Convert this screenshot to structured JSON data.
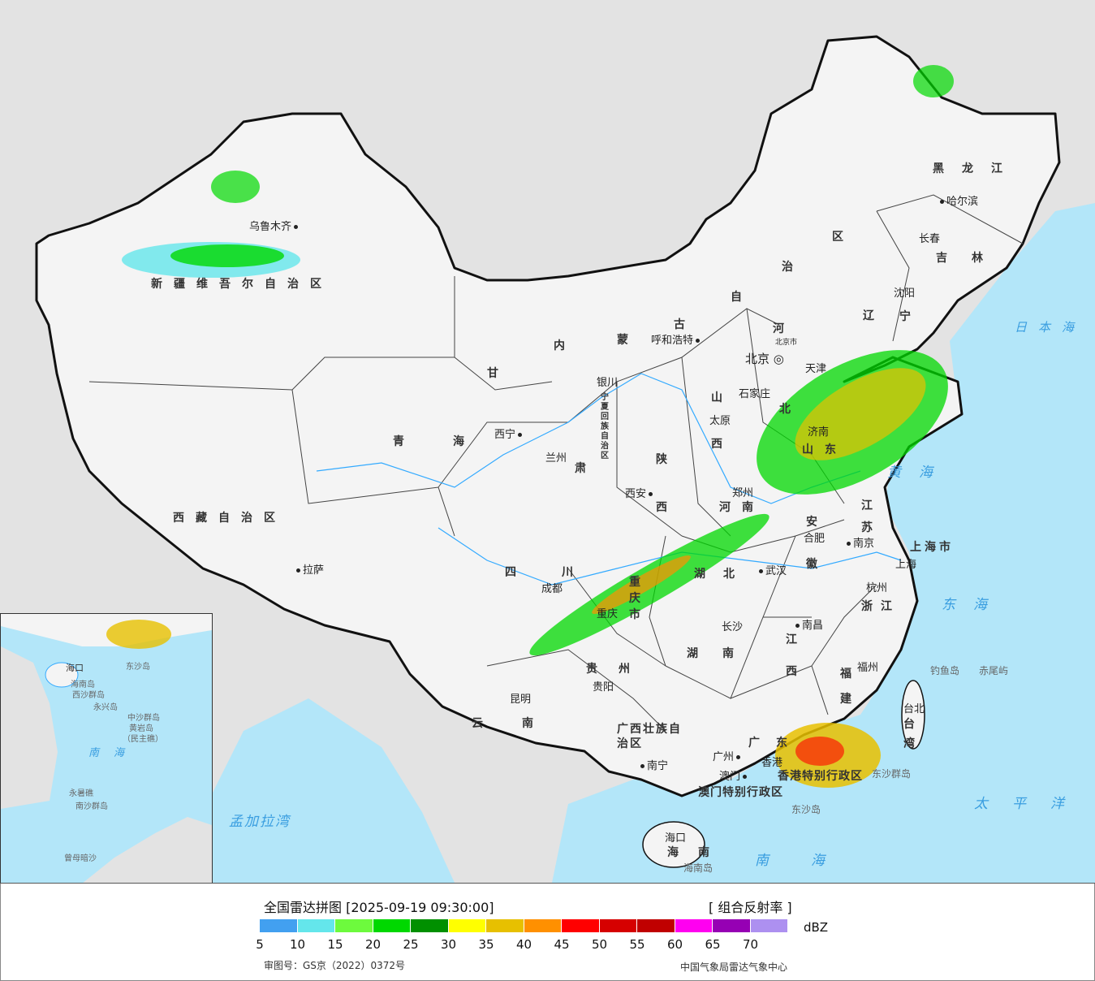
{
  "map": {
    "colors": {
      "land": "#f4f4f4",
      "outside": "#e3e3e3",
      "sea": "#b3e6f9",
      "border": "#111111",
      "river": "#33aaff"
    },
    "cities": {
      "urumqi": "乌鲁木齐",
      "lhasa": "拉萨",
      "xining": "西宁",
      "lanzhou": "兰州",
      "yinchuan": "银川",
      "hohhot": "呼和浩特",
      "harbin": "哈尔滨",
      "changchun": "长春",
      "shenyang": "沈阳",
      "beijing": "北京",
      "beijing_city": "北京市",
      "tianjin": "天津",
      "shijiazhuang": "石家庄",
      "taiyuan": "太原",
      "jinan": "济南",
      "xian": "西安",
      "zhengzhou": "郑州",
      "nanjing": "南京",
      "shanghai": "上海",
      "hefei": "合肥",
      "wuhan": "武汉",
      "hangzhou": "杭州",
      "chengdu": "成都",
      "chongqing": "重庆",
      "guiyang": "贵阳",
      "kunming": "昆明",
      "nanning": "南宁",
      "changsha": "长沙",
      "nanchang": "南昌",
      "fuzhou": "福州",
      "taipei": "台北",
      "guangzhou": "广州",
      "hongkong": "香港",
      "macau": "澳门",
      "haikou": "海口"
    },
    "provinces": {
      "xinjiang": "新疆维吾尔自治区",
      "xizang": "西藏自治区",
      "qinghai": "青海",
      "gansu": "甘",
      "su": "肃",
      "ningxia": "宁夏回族自治区",
      "neimenggu_nei": "内",
      "neimenggu_meng": "蒙",
      "neimenggu_gu": "古",
      "neimenggu_zi": "自",
      "neimenggu_zhi": "治",
      "neimenggu_qu": "区",
      "heilongjiang": "黑龙江",
      "jilin": "吉林",
      "liaoning_l": "辽",
      "liaoning_n": "宁",
      "hebei_h": "河",
      "hebei_b": "北",
      "shanxi_s": "山",
      "shanxi_x": "西",
      "shandong": "山东",
      "shaanxi_s": "陕",
      "shaanxi_x": "西",
      "henan": "河南",
      "jiangsu_j": "江",
      "jiangsu_s": "苏",
      "shanghai": "上海市",
      "anhui_a": "安",
      "anhui_h": "徽",
      "hubei": "湖北",
      "zhejiang": "浙江",
      "sichuan": "四川",
      "chongqing": "重庆市",
      "guizhou": "贵州",
      "yunnan": "云南",
      "guangxi": "广西壮族自治区",
      "hunan": "湖南",
      "jiangxi_j": "江",
      "jiangxi_x": "西",
      "fujian_f": "福",
      "fujian_j": "建",
      "taiwan": "台湾",
      "guangdong": "广东",
      "hongkong_sar": "香港特别行政区",
      "macau_sar": "澳门特别行政区",
      "hainan": "海南"
    },
    "seas": {
      "japan_sea": "日本海",
      "yellow_sea": "黄海",
      "east_sea": "东海",
      "pacific": "太平洋",
      "south_sea": "南海",
      "bengal": "孟加拉湾"
    },
    "islands": {
      "diaoyu": "钓鱼岛",
      "chiwei": "赤尾屿",
      "dongsha": "东沙岛",
      "dongsha_qd": "东沙群岛",
      "hainan_island": "海南岛"
    },
    "inset": {
      "south_sea": "南海",
      "xisha": "西沙群岛",
      "zhongsha": "中沙群岛",
      "nansha": "南沙群岛",
      "yongxing": "永兴岛",
      "huangyan": "黄岩岛",
      "minzhu": "（民主礁）",
      "yongshu": "永暑礁",
      "zengmu": "曾母暗沙",
      "dongsha": "东沙岛",
      "haikou": "海口",
      "hainan_island": "海南岛"
    }
  },
  "legend": {
    "title": "全国雷达拼图 [2025-09-19 09:30:00]",
    "product": "[ 组合反射率 ]",
    "unit": "dBZ",
    "colors": [
      "#42a0f0",
      "#64e6eb",
      "#6dfa3d",
      "#00d800",
      "#019000",
      "#ffff00",
      "#e7c000",
      "#ff9000",
      "#ff0000",
      "#d60000",
      "#c00000",
      "#ff00f0",
      "#9600b4",
      "#ad90f0"
    ],
    "ticks": [
      "5",
      "10",
      "15",
      "20",
      "25",
      "30",
      "35",
      "40",
      "45",
      "50",
      "55",
      "60",
      "65",
      "70"
    ]
  },
  "footer": {
    "approval": "审图号：GS京（2022）0372号",
    "agency": "中国气象局雷达气象中心"
  }
}
